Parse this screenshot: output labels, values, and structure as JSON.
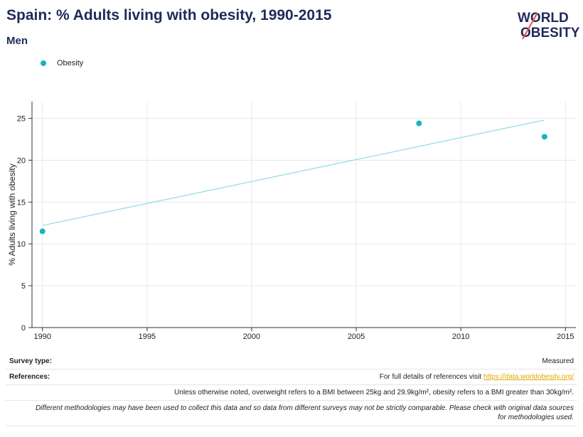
{
  "header": {
    "title": "Spain: % Adults living with obesity, 1990-2015",
    "subtitle": "Men",
    "logo_line1": "WORLD",
    "logo_line2": "OBESITY"
  },
  "colors": {
    "series": "#17b4c4",
    "trend": "#8fdde4",
    "title": "#1f2a5a",
    "logo_accent": "#e8504b",
    "link": "#e0a800"
  },
  "chart_data": {
    "type": "scatter",
    "title": "Spain: % Adults living with obesity, 1990-2015",
    "subtitle": "Men",
    "ylabel": "% Adults living with obesity",
    "xlabel": "",
    "xlim": [
      1989.5,
      2015.5
    ],
    "ylim": [
      0,
      27
    ],
    "x_ticks": [
      1990,
      1995,
      2000,
      2005,
      2010,
      2015
    ],
    "y_ticks": [
      0,
      5,
      10,
      15,
      20,
      25
    ],
    "grid": true,
    "legend_position": "top-left",
    "series": [
      {
        "name": "Obesity",
        "points": [
          {
            "x": 1990,
            "y": 11.5
          },
          {
            "x": 2008,
            "y": 24.4
          },
          {
            "x": 2014,
            "y": 22.8
          }
        ]
      }
    ],
    "trendline": {
      "x": [
        1990,
        2014
      ],
      "y": [
        12.2,
        24.8
      ]
    }
  },
  "footer": {
    "survey_type_label": "Survey type:",
    "survey_type_value": "Measured",
    "references_label": "References:",
    "references_text": "For full details of references visit ",
    "references_link": "https://data.worldobesity.org/",
    "note_bmi": "Unless otherwise noted, overweight refers to a BMI between 25kg and 29.9kg/m², obesity refers to a BMI greater than 30kg/m².",
    "note_methodology": "Different methodologies may have been used to collect this data and so data from different surveys may not be strictly comparable. Please check with original data sources for methodologies used."
  }
}
